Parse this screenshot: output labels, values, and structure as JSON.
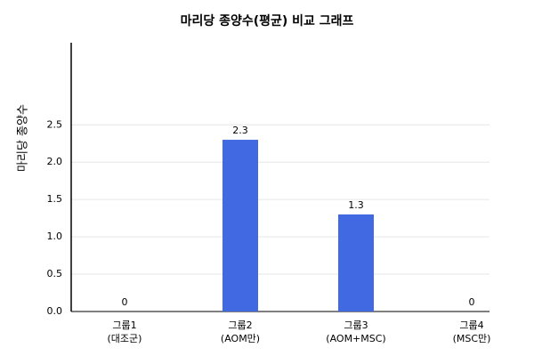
{
  "chart_data": {
    "type": "bar",
    "title": "마리당 종양수(평균) 비교 그래프",
    "ylabel": "마리당 종양수",
    "categories": [
      [
        "그룹1",
        "(대조군)"
      ],
      [
        "그룹2",
        "(AOM만)"
      ],
      [
        "그룹3",
        "(AOM+MSC)"
      ],
      [
        "그룹4",
        "(MSC만)"
      ]
    ],
    "values": [
      0,
      2.3,
      1.3,
      0
    ],
    "color": "#4169e1",
    "ylim": [
      0,
      3.6
    ],
    "yticks": [
      {
        "value": 0,
        "label": "0.0"
      },
      0.5,
      {
        "value": 1,
        "label": "1.0"
      },
      1.5,
      {
        "value": 2,
        "label": "2.0"
      },
      2.5
    ],
    "grid": true
  }
}
